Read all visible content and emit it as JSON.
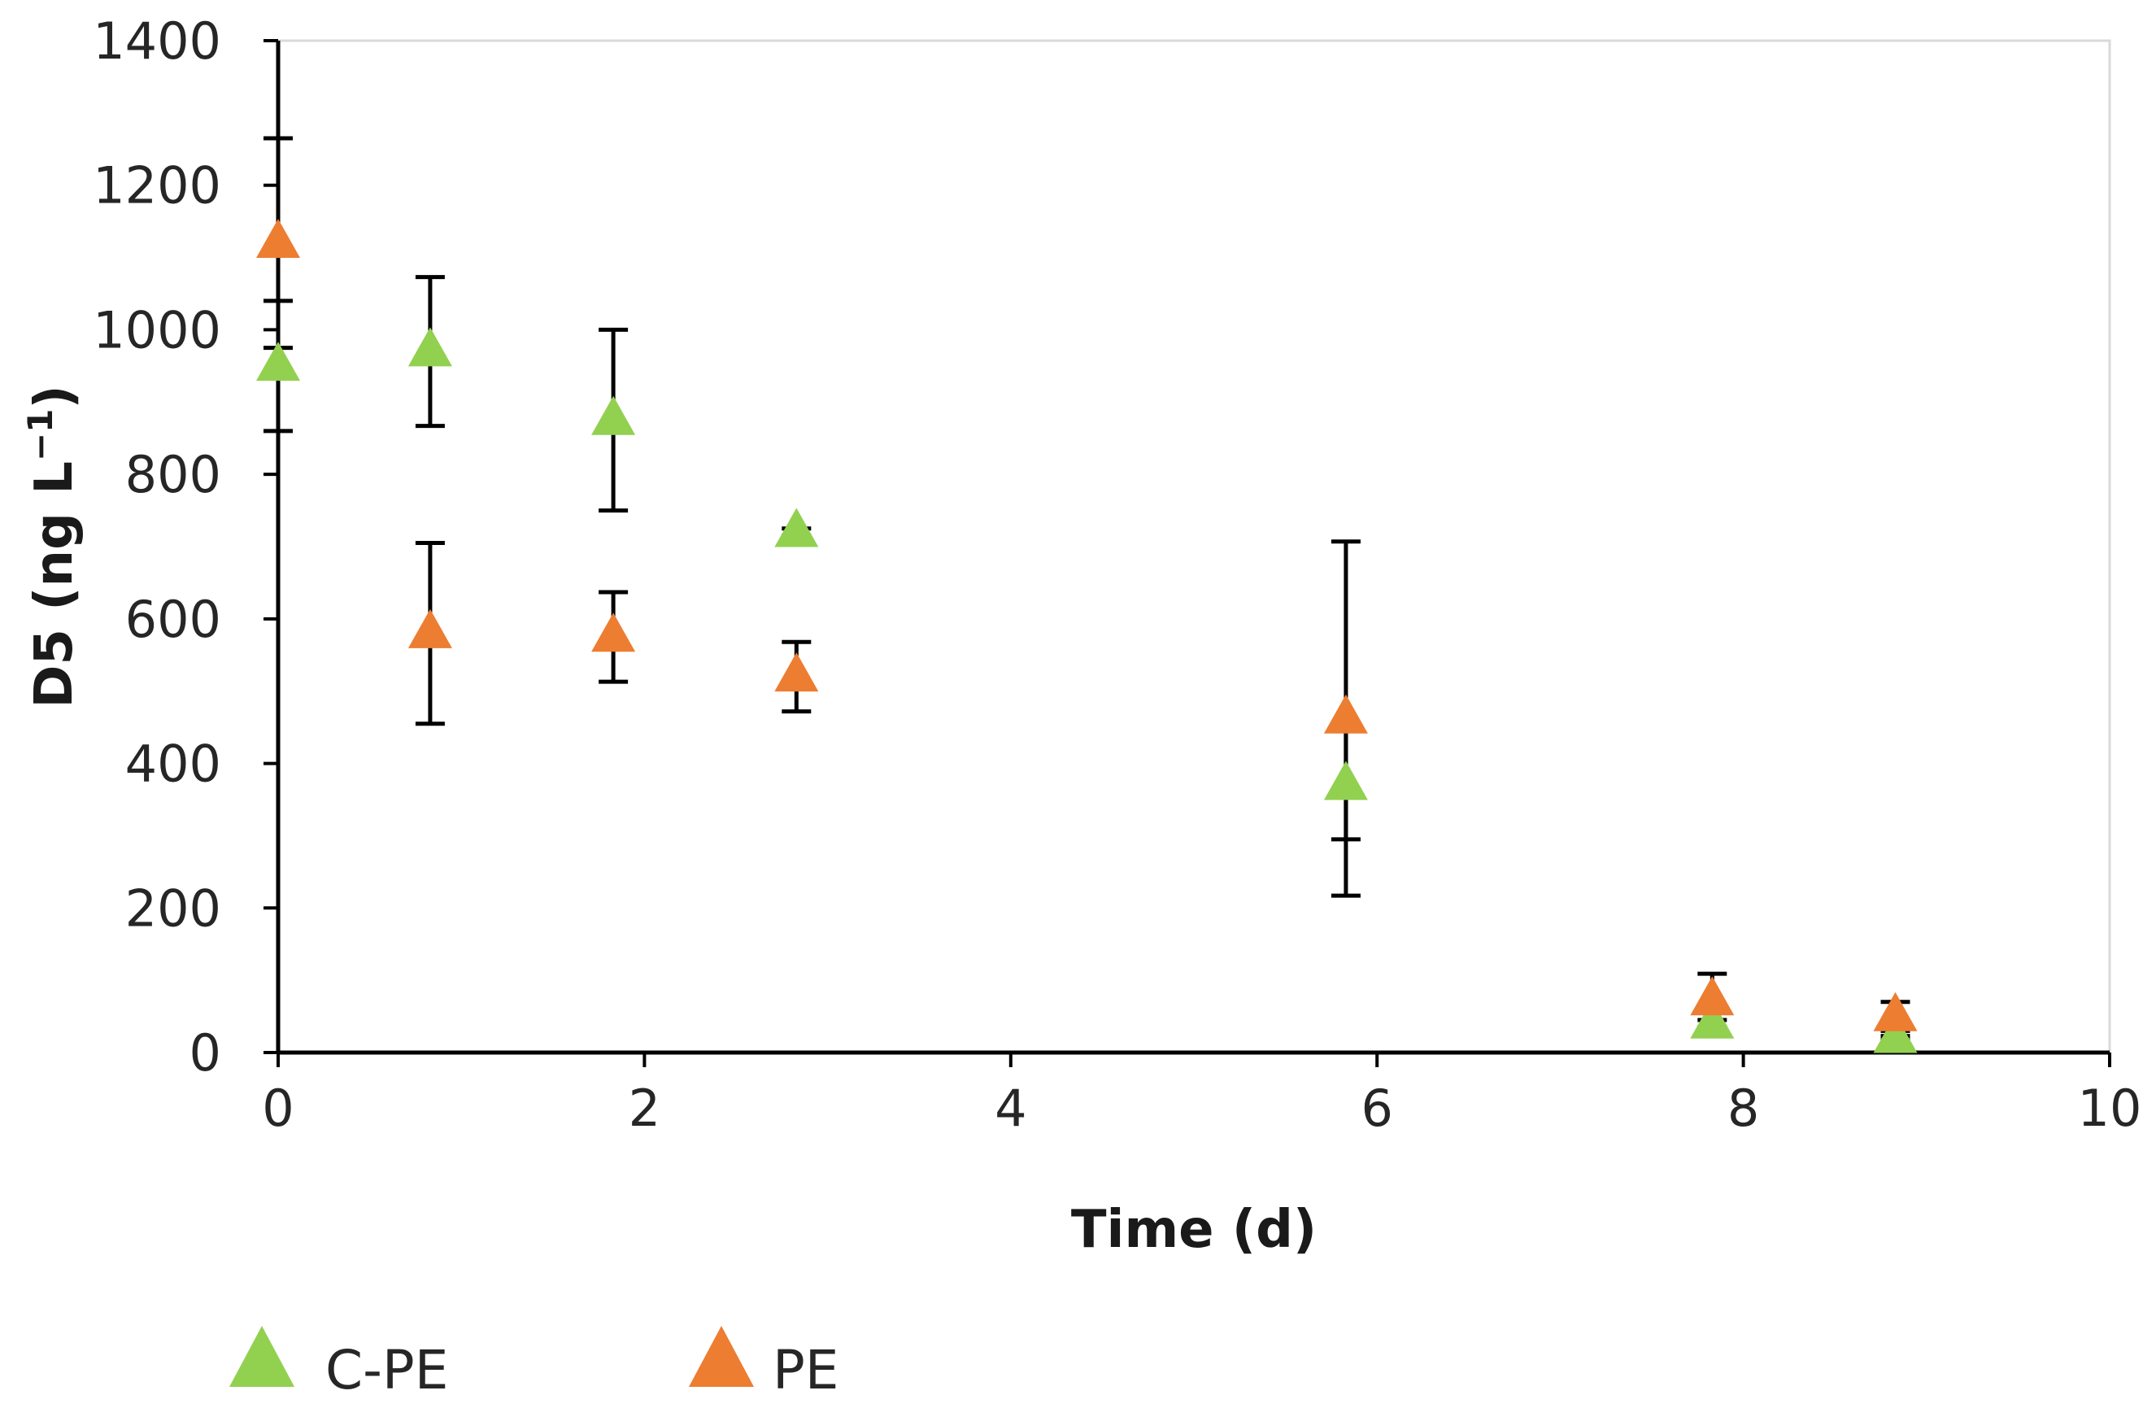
{
  "chart_data": {
    "type": "scatter",
    "title": "",
    "xlabel": "Time (d)",
    "ylabel_main": "D5 (ng  L",
    "ylabel_sup": "−1",
    "ylabel_close": ")",
    "xlim": [
      0,
      10
    ],
    "ylim": [
      0,
      1400
    ],
    "xticks": [
      0,
      2,
      4,
      6,
      8,
      10
    ],
    "yticks": [
      0,
      200,
      400,
      600,
      800,
      1000,
      1200,
      1400
    ],
    "grid": false,
    "legend_position": "bottom-left",
    "series": [
      {
        "name": "C-PE",
        "color": "#92D050",
        "marker": "triangle",
        "points": [
          {
            "x": 0.0,
            "y": 950,
            "err": 90
          },
          {
            "x": 0.83,
            "y": 970,
            "err": 103
          },
          {
            "x": 1.83,
            "y": 875,
            "err": 125
          },
          {
            "x": 2.83,
            "y": 720,
            "err": 5
          },
          {
            "x": 5.83,
            "y": 370,
            "err": 75
          },
          {
            "x": 7.83,
            "y": 40,
            "err": 5
          },
          {
            "x": 8.83,
            "y": 20,
            "err": 3
          }
        ]
      },
      {
        "name": "PE",
        "color": "#ED7D31",
        "marker": "triangle",
        "points": [
          {
            "x": 0.0,
            "y": 1120,
            "err": 145
          },
          {
            "x": 0.83,
            "y": 580,
            "err": 125
          },
          {
            "x": 1.83,
            "y": 575,
            "err": 62
          },
          {
            "x": 2.83,
            "y": 520,
            "err": 48
          },
          {
            "x": 5.83,
            "y": 462,
            "err": 245
          },
          {
            "x": 7.83,
            "y": 72,
            "err": 37
          },
          {
            "x": 8.83,
            "y": 50,
            "err": 20
          }
        ]
      }
    ]
  }
}
